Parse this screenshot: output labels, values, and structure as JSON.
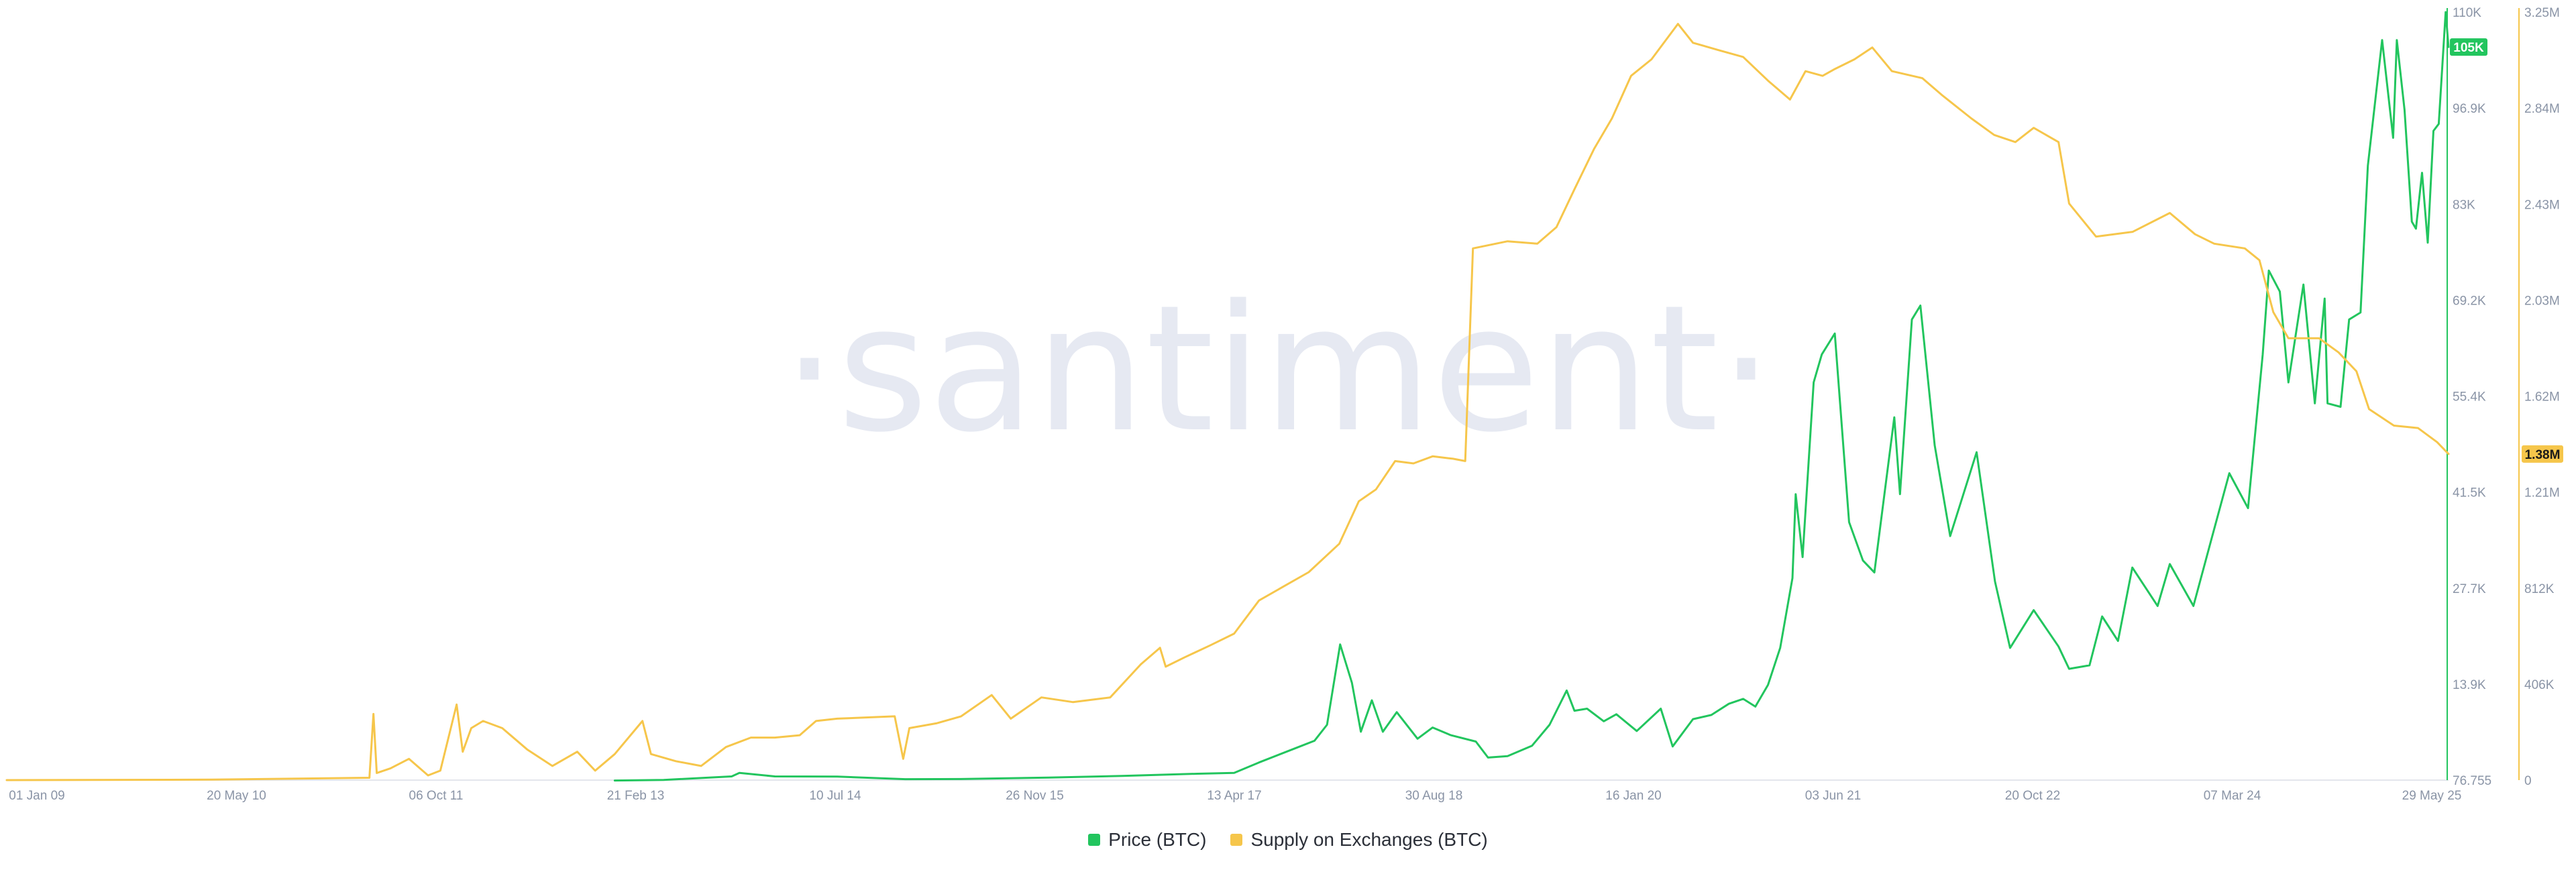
{
  "watermark": "·santiment·",
  "colors": {
    "price": "#22c55e",
    "supply": "#f6c64b",
    "axis": "#8a94a6"
  },
  "chart_data": {
    "type": "line",
    "x_ticks": [
      "01 Jan 09",
      "20 May 10",
      "06 Oct 11",
      "21 Feb 13",
      "10 Jul 14",
      "26 Nov 15",
      "13 Apr 17",
      "30 Aug 18",
      "16 Jan 20",
      "03 Jun 21",
      "20 Oct 22",
      "07 Mar 24",
      "29 May 25"
    ],
    "x_range": [
      "2009-01-01",
      "2025-05-29"
    ],
    "y_axes": [
      {
        "id": "price",
        "side": "right",
        "ticks": [
          "76.755",
          "13.9K",
          "27.7K",
          "41.5K",
          "55.4K",
          "69.2K",
          "83K",
          "96.9K",
          "110K"
        ],
        "range": [
          76.755,
          110000
        ],
        "current_value_label": "105K"
      },
      {
        "id": "supply",
        "side": "right-outer",
        "ticks": [
          "0",
          "406K",
          "812K",
          "1.21M",
          "1.62M",
          "2.03M",
          "2.43M",
          "2.84M",
          "3.25M"
        ],
        "range": [
          0,
          3250000
        ],
        "current_value_label": "1.38M"
      }
    ],
    "series": [
      {
        "name": "Price (BTC)",
        "axis": "price",
        "points": [
          [
            "2013-02-01",
            20
          ],
          [
            "2013-06-01",
            110
          ],
          [
            "2013-11-15",
            600
          ],
          [
            "2013-12-04",
            1100
          ],
          [
            "2014-03-01",
            600
          ],
          [
            "2014-08-01",
            580
          ],
          [
            "2015-01-15",
            210
          ],
          [
            "2015-06-01",
            230
          ],
          [
            "2016-01-01",
            430
          ],
          [
            "2016-07-01",
            670
          ],
          [
            "2017-01-01",
            990
          ],
          [
            "2017-04-01",
            1100
          ],
          [
            "2017-06-01",
            2600
          ],
          [
            "2017-09-01",
            4700
          ],
          [
            "2017-10-15",
            5700
          ],
          [
            "2017-11-15",
            8000
          ],
          [
            "2017-12-17",
            19500
          ],
          [
            "2018-01-15",
            14000
          ],
          [
            "2018-02-06",
            7000
          ],
          [
            "2018-03-05",
            11500
          ],
          [
            "2018-04-01",
            7000
          ],
          [
            "2018-05-05",
            9800
          ],
          [
            "2018-06-25",
            6000
          ],
          [
            "2018-08-01",
            7600
          ],
          [
            "2018-09-15",
            6500
          ],
          [
            "2018-11-15",
            5600
          ],
          [
            "2018-12-15",
            3300
          ],
          [
            "2019-02-01",
            3500
          ],
          [
            "2019-04-02",
            5000
          ],
          [
            "2019-05-15",
            8000
          ],
          [
            "2019-06-26",
            12900
          ],
          [
            "2019-07-15",
            10000
          ],
          [
            "2019-08-15",
            10300
          ],
          [
            "2019-09-25",
            8500
          ],
          [
            "2019-10-26",
            9500
          ],
          [
            "2019-12-15",
            7100
          ],
          [
            "2020-02-12",
            10300
          ],
          [
            "2020-03-12",
            4900
          ],
          [
            "2020-05-01",
            8800
          ],
          [
            "2020-06-15",
            9400
          ],
          [
            "2020-07-28",
            11000
          ],
          [
            "2020-09-01",
            11700
          ],
          [
            "2020-10-01",
            10600
          ],
          [
            "2020-11-01",
            13700
          ],
          [
            "2020-12-01",
            19000
          ],
          [
            "2020-12-31",
            29000
          ],
          [
            "2021-01-08",
            41000
          ],
          [
            "2021-01-25",
            32000
          ],
          [
            "2021-02-21",
            57000
          ],
          [
            "2021-03-13",
            61000
          ],
          [
            "2021-04-14",
            64000
          ],
          [
            "2021-05-19",
            37000
          ],
          [
            "2021-06-22",
            31500
          ],
          [
            "2021-07-20",
            29800
          ],
          [
            "2021-09-07",
            52000
          ],
          [
            "2021-09-21",
            41000
          ],
          [
            "2021-10-20",
            66000
          ],
          [
            "2021-11-10",
            68000
          ],
          [
            "2021-12-15",
            48000
          ],
          [
            "2022-01-22",
            35000
          ],
          [
            "2022-03-28",
            47000
          ],
          [
            "2022-05-12",
            28500
          ],
          [
            "2022-06-18",
            19000
          ],
          [
            "2022-08-15",
            24400
          ],
          [
            "2022-10-15",
            19200
          ],
          [
            "2022-11-10",
            16000
          ],
          [
            "2022-12-30",
            16500
          ],
          [
            "2023-01-30",
            23500
          ],
          [
            "2023-03-10",
            20000
          ],
          [
            "2023-04-14",
            30500
          ],
          [
            "2023-06-15",
            25000
          ],
          [
            "2023-07-15",
            31000
          ],
          [
            "2023-09-11",
            25000
          ],
          [
            "2023-10-25",
            34500
          ],
          [
            "2023-12-08",
            44000
          ],
          [
            "2024-01-23",
            39000
          ],
          [
            "2024-02-28",
            61000
          ],
          [
            "2024-03-14",
            73000
          ],
          [
            "2024-04-10",
            70000
          ],
          [
            "2024-05-01",
            57000
          ],
          [
            "2024-06-07",
            71000
          ],
          [
            "2024-07-05",
            54000
          ],
          [
            "2024-07-29",
            69000
          ],
          [
            "2024-08-05",
            54000
          ],
          [
            "2024-09-06",
            53500
          ],
          [
            "2024-09-27",
            66000
          ],
          [
            "2024-10-25",
            67000
          ],
          [
            "2024-11-12",
            88000
          ],
          [
            "2024-12-17",
            106000
          ],
          [
            "2025-01-13",
            92000
          ],
          [
            "2025-01-22",
            106000
          ],
          [
            "2025-02-10",
            96000
          ],
          [
            "2025-02-28",
            80000
          ],
          [
            "2025-03-10",
            79000
          ],
          [
            "2025-03-25",
            87000
          ],
          [
            "2025-04-08",
            77000
          ],
          [
            "2025-04-22",
            93000
          ],
          [
            "2025-05-05",
            94000
          ],
          [
            "2025-05-22",
            110000
          ],
          [
            "2025-05-29",
            105000
          ]
        ]
      },
      {
        "name": "Supply on Exchanges (BTC)",
        "axis": "supply",
        "points": [
          [
            "2009-01-01",
            0
          ],
          [
            "2010-05-20",
            2000
          ],
          [
            "2011-06-10",
            10000
          ],
          [
            "2011-06-20",
            280000
          ],
          [
            "2011-06-28",
            30000
          ],
          [
            "2011-08-01",
            50000
          ],
          [
            "2011-09-15",
            90000
          ],
          [
            "2011-11-01",
            20000
          ],
          [
            "2011-12-01",
            40000
          ],
          [
            "2012-01-10",
            320000
          ],
          [
            "2012-01-25",
            120000
          ],
          [
            "2012-02-15",
            220000
          ],
          [
            "2012-03-15",
            250000
          ],
          [
            "2012-05-01",
            220000
          ],
          [
            "2012-07-01",
            130000
          ],
          [
            "2012-09-01",
            60000
          ],
          [
            "2012-11-01",
            120000
          ],
          [
            "2012-12-15",
            40000
          ],
          [
            "2013-02-01",
            110000
          ],
          [
            "2013-04-10",
            250000
          ],
          [
            "2013-05-01",
            110000
          ],
          [
            "2013-07-01",
            80000
          ],
          [
            "2013-09-01",
            60000
          ],
          [
            "2013-11-01",
            140000
          ],
          [
            "2014-01-01",
            180000
          ],
          [
            "2014-03-01",
            180000
          ],
          [
            "2014-05-01",
            190000
          ],
          [
            "2014-06-10",
            250000
          ],
          [
            "2014-08-01",
            260000
          ],
          [
            "2014-12-20",
            270000
          ],
          [
            "2015-01-10",
            90000
          ],
          [
            "2015-01-25",
            220000
          ],
          [
            "2015-04-01",
            240000
          ],
          [
            "2015-06-01",
            270000
          ],
          [
            "2015-08-15",
            360000
          ],
          [
            "2015-10-01",
            260000
          ],
          [
            "2015-12-15",
            350000
          ],
          [
            "2016-03-01",
            330000
          ],
          [
            "2016-06-01",
            350000
          ],
          [
            "2016-08-15",
            490000
          ],
          [
            "2016-10-01",
            560000
          ],
          [
            "2016-10-15",
            480000
          ],
          [
            "2016-12-01",
            520000
          ],
          [
            "2017-02-01",
            570000
          ],
          [
            "2017-04-01",
            620000
          ],
          [
            "2017-06-01",
            760000
          ],
          [
            "2017-08-01",
            820000
          ],
          [
            "2017-10-01",
            880000
          ],
          [
            "2017-12-15",
            1000000
          ],
          [
            "2018-02-01",
            1180000
          ],
          [
            "2018-03-15",
            1230000
          ],
          [
            "2018-05-01",
            1350000
          ],
          [
            "2018-06-15",
            1340000
          ],
          [
            "2018-08-01",
            1370000
          ],
          [
            "2018-09-20",
            1360000
          ],
          [
            "2018-10-20",
            1350000
          ],
          [
            "2018-11-08",
            2250000
          ],
          [
            "2019-02-01",
            2280000
          ],
          [
            "2019-04-15",
            2270000
          ],
          [
            "2019-06-01",
            2340000
          ],
          [
            "2019-07-15",
            2500000
          ],
          [
            "2019-09-01",
            2670000
          ],
          [
            "2019-10-15",
            2800000
          ],
          [
            "2019-12-01",
            2980000
          ],
          [
            "2020-01-20",
            3050000
          ],
          [
            "2020-03-25",
            3200000
          ],
          [
            "2020-05-01",
            3120000
          ],
          [
            "2020-07-01",
            3090000
          ],
          [
            "2020-09-01",
            3060000
          ],
          [
            "2020-11-01",
            2960000
          ],
          [
            "2020-12-25",
            2880000
          ],
          [
            "2021-02-01",
            3000000
          ],
          [
            "2021-03-15",
            2980000
          ],
          [
            "2021-04-15",
            3010000
          ],
          [
            "2021-06-01",
            3050000
          ],
          [
            "2021-07-15",
            3100000
          ],
          [
            "2021-09-01",
            3000000
          ],
          [
            "2021-11-15",
            2970000
          ],
          [
            "2022-01-01",
            2900000
          ],
          [
            "2022-03-15",
            2800000
          ],
          [
            "2022-05-10",
            2730000
          ],
          [
            "2022-07-01",
            2700000
          ],
          [
            "2022-08-15",
            2760000
          ],
          [
            "2022-10-15",
            2700000
          ],
          [
            "2022-11-10",
            2440000
          ],
          [
            "2023-01-15",
            2300000
          ],
          [
            "2023-04-15",
            2320000
          ],
          [
            "2023-07-15",
            2400000
          ],
          [
            "2023-09-15",
            2310000
          ],
          [
            "2023-11-01",
            2270000
          ],
          [
            "2024-01-15",
            2250000
          ],
          [
            "2024-02-20",
            2200000
          ],
          [
            "2024-03-25",
            1980000
          ],
          [
            "2024-05-01",
            1870000
          ],
          [
            "2024-07-15",
            1870000
          ],
          [
            "2024-09-01",
            1810000
          ],
          [
            "2024-10-15",
            1730000
          ],
          [
            "2024-11-15",
            1570000
          ],
          [
            "2025-01-15",
            1500000
          ],
          [
            "2025-03-15",
            1490000
          ],
          [
            "2025-05-01",
            1430000
          ],
          [
            "2025-05-29",
            1380000
          ]
        ]
      }
    ],
    "grid": false,
    "legend_placement": "bottom-center"
  }
}
